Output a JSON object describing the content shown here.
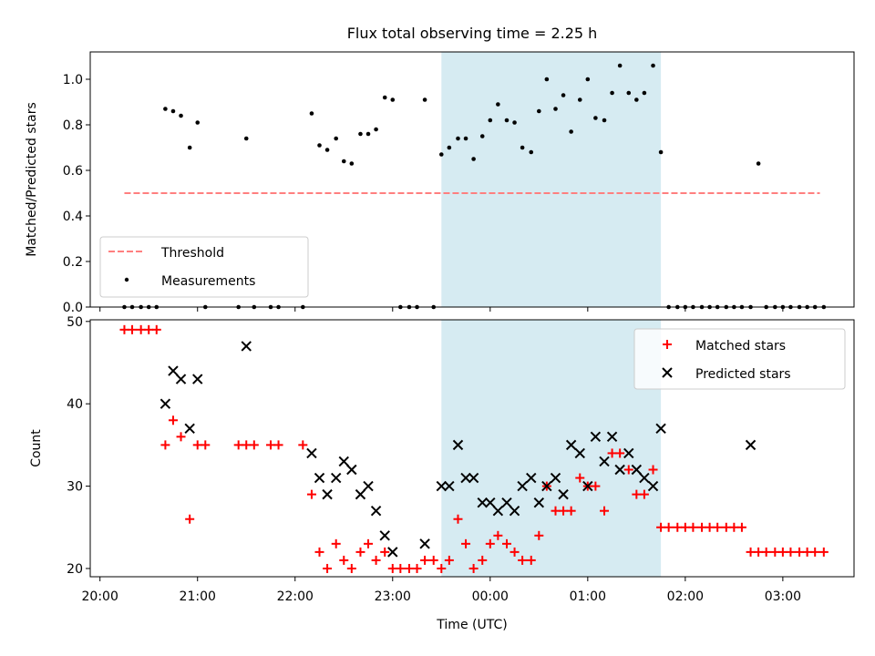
{
  "chart_data": [
    {
      "type": "scatter",
      "title": "Flux total observing time = 2.25 h",
      "ylabel": "Matched/Predicted stars",
      "xlabel": "",
      "x_range_hours": [
        19.9,
        27.73
      ],
      "ylim": [
        0,
        1.12
      ],
      "yticks": [
        0.0,
        0.2,
        0.4,
        0.6,
        0.8,
        1.0
      ],
      "ytick_labels": [
        "0.0",
        "0.2",
        "0.4",
        "0.6",
        "0.8",
        "1.0"
      ],
      "shaded_span_hours": [
        23.5,
        25.75
      ],
      "shade_color": "#add8e6",
      "threshold": {
        "name": "Threshold",
        "value": 0.5,
        "x_range_hours": [
          20.25,
          27.38
        ],
        "color": "#ff7f7f"
      },
      "legend": {
        "placement": "lower-left",
        "entries": [
          "Threshold",
          "Measurements"
        ]
      },
      "series": [
        {
          "name": "Measurements",
          "color": "#000000",
          "marker": "dot",
          "x_hours": [
            20.25,
            20.33,
            20.42,
            20.5,
            20.58,
            20.67,
            20.75,
            20.83,
            20.92,
            21.0,
            21.08,
            21.42,
            21.5,
            21.58,
            21.75,
            21.83,
            22.08,
            22.17,
            22.25,
            22.33,
            22.42,
            22.5,
            22.58,
            22.67,
            22.75,
            22.83,
            22.92,
            23.0,
            23.08,
            23.17,
            23.25,
            23.33,
            23.42,
            23.5,
            23.58,
            23.67,
            23.75,
            23.83,
            23.92,
            24.0,
            24.08,
            24.17,
            24.25,
            24.33,
            24.42,
            24.5,
            24.58,
            24.67,
            24.75,
            24.83,
            24.92,
            25.0,
            25.08,
            25.17,
            25.25,
            25.33,
            25.42,
            25.5,
            25.58,
            25.67,
            25.75,
            25.83,
            25.92,
            26.0,
            26.08,
            26.17,
            26.25,
            26.33,
            26.42,
            26.5,
            26.58,
            26.67,
            26.75,
            26.83,
            26.92,
            27.0,
            27.08,
            27.17,
            27.25,
            27.33,
            27.42
          ],
          "y": [
            0,
            0,
            0,
            0,
            0,
            0.87,
            0.86,
            0.84,
            0.7,
            0.81,
            0,
            0,
            0.74,
            0,
            0,
            0,
            0,
            0.85,
            0.71,
            0.69,
            0.74,
            0.64,
            0.63,
            0.76,
            0.76,
            0.78,
            0.92,
            0.91,
            0,
            0,
            0,
            0.91,
            0,
            0.67,
            0.7,
            0.74,
            0.74,
            0.65,
            0.75,
            0.82,
            0.89,
            0.82,
            0.81,
            0.7,
            0.68,
            0.86,
            1.0,
            0.87,
            0.93,
            0.77,
            0.91,
            1.0,
            0.83,
            0.82,
            0.94,
            1.06,
            0.94,
            0.91,
            0.94,
            1.06,
            0.68,
            0,
            0,
            0,
            0,
            0,
            0,
            0,
            0,
            0,
            0,
            0,
            0.63,
            0,
            0,
            0,
            0,
            0,
            0,
            0,
            0
          ]
        }
      ]
    },
    {
      "type": "scatter",
      "title": "",
      "ylabel": "Count",
      "xlabel": "Time (UTC)",
      "x_range_hours": [
        19.9,
        27.73
      ],
      "ylim": [
        19,
        50.2
      ],
      "yticks": [
        20,
        30,
        40,
        50
      ],
      "ytick_labels": [
        "20",
        "30",
        "40",
        "50"
      ],
      "xticks_hours": [
        20,
        21,
        22,
        23,
        24,
        25,
        26,
        27
      ],
      "xtick_labels": [
        "20:00",
        "21:00",
        "22:00",
        "23:00",
        "00:00",
        "01:00",
        "02:00",
        "03:00"
      ],
      "shaded_span_hours": [
        23.5,
        25.75
      ],
      "shade_color": "#add8e6",
      "legend": {
        "placement": "top-right",
        "entries": [
          "Matched stars",
          "Predicted stars"
        ]
      },
      "series": [
        {
          "name": "Matched stars",
          "color": "#ff0000",
          "marker": "plus",
          "x_hours": [
            20.25,
            20.33,
            20.42,
            20.5,
            20.58,
            20.67,
            20.75,
            20.83,
            20.92,
            21.0,
            21.08,
            21.42,
            21.5,
            21.58,
            21.75,
            21.83,
            22.08,
            22.17,
            22.25,
            22.33,
            22.42,
            22.5,
            22.58,
            22.67,
            22.75,
            22.83,
            22.92,
            23.0,
            23.08,
            23.17,
            23.25,
            23.33,
            23.42,
            23.5,
            23.58,
            23.67,
            23.75,
            23.83,
            23.92,
            24.0,
            24.08,
            24.17,
            24.25,
            24.33,
            24.42,
            24.5,
            24.58,
            24.67,
            24.75,
            24.83,
            24.92,
            25.0,
            25.08,
            25.17,
            25.25,
            25.33,
            25.42,
            25.5,
            25.58,
            25.67,
            25.75,
            25.83,
            25.92,
            26.0,
            26.08,
            26.17,
            26.25,
            26.33,
            26.42,
            26.5,
            26.58,
            26.67,
            26.75,
            26.83,
            26.92,
            27.0,
            27.08,
            27.17,
            27.25,
            27.33,
            27.42
          ],
          "y": [
            49,
            49,
            49,
            49,
            49,
            35,
            38,
            36,
            26,
            35,
            35,
            35,
            35,
            35,
            35,
            35,
            35,
            29,
            22,
            20,
            23,
            21,
            20,
            22,
            23,
            21,
            22,
            20,
            20,
            20,
            20,
            21,
            21,
            20,
            21,
            26,
            23,
            20,
            21,
            23,
            24,
            23,
            22,
            21,
            21,
            24,
            30,
            27,
            27,
            27,
            31,
            30,
            30,
            27,
            34,
            34,
            32,
            29,
            29,
            32,
            25,
            25,
            25,
            25,
            25,
            25,
            25,
            25,
            25,
            25,
            25,
            22,
            22,
            22,
            22,
            22,
            22,
            22,
            22,
            22,
            22
          ]
        },
        {
          "name": "Predicted stars",
          "color": "#000000",
          "marker": "x",
          "x_hours": [
            20.67,
            20.75,
            20.83,
            20.92,
            21.0,
            21.5,
            22.17,
            22.25,
            22.33,
            22.42,
            22.5,
            22.58,
            22.67,
            22.75,
            22.83,
            22.92,
            23.0,
            23.33,
            23.5,
            23.58,
            23.67,
            23.75,
            23.83,
            23.92,
            24.0,
            24.08,
            24.17,
            24.25,
            24.33,
            24.42,
            24.5,
            24.58,
            24.67,
            24.75,
            24.83,
            24.92,
            25.0,
            25.08,
            25.17,
            25.25,
            25.33,
            25.42,
            25.5,
            25.58,
            25.67,
            25.75,
            26.67
          ],
          "y": [
            40,
            44,
            43,
            37,
            43,
            47,
            34,
            31,
            29,
            31,
            33,
            32,
            29,
            30,
            27,
            24,
            22,
            23,
            30,
            30,
            35,
            31,
            31,
            28,
            28,
            27,
            28,
            27,
            30,
            31,
            28,
            30,
            31,
            29,
            35,
            34,
            30,
            36,
            33,
            36,
            32,
            34,
            32,
            31,
            30,
            37,
            35
          ]
        }
      ]
    }
  ]
}
